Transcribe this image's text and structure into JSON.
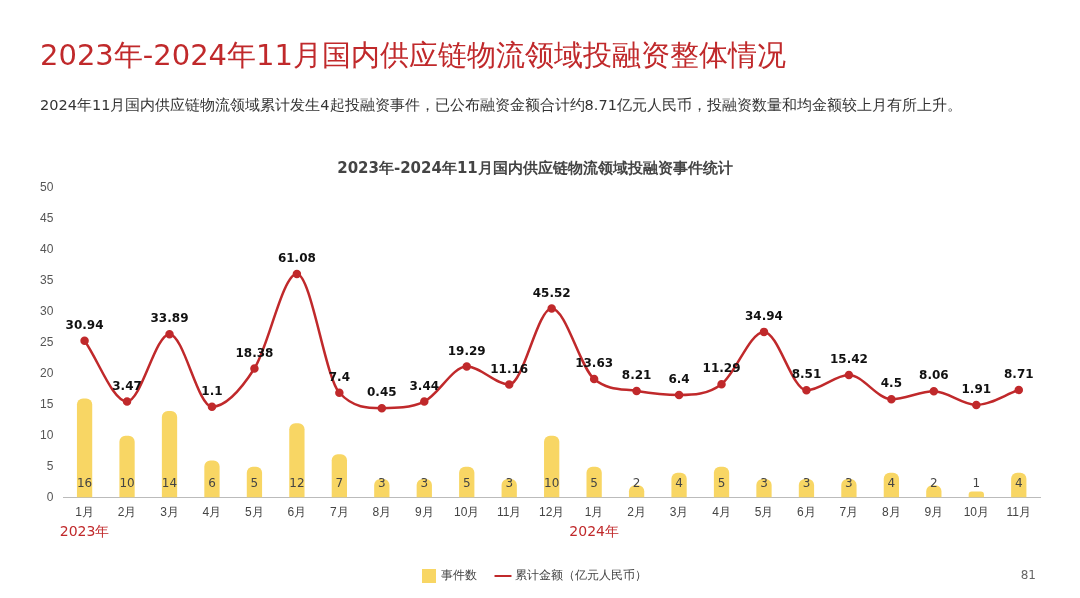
{
  "chart_data": {
    "type": "bar",
    "title": "2023年-2024年11月国内供应链物流领域投融资整体情况",
    "subtitle": "2024年11月国内供应链物流领域累计发生4起投融资事件，已公布融资金额合计约8.71亿元人民币，投融资数量和均金额较上月有所上升。",
    "annotations": [
      "2023年-2024年11月国内供应链物流领域投融资事件统计",
      "2023年",
      "2024年",
      "81"
    ],
    "categories": [
      "1月",
      "2月",
      "3月",
      "4月",
      "5月",
      "6月",
      "7月",
      "8月",
      "9月",
      "10月",
      "11月",
      "12月",
      "1月",
      "2月",
      "3月",
      "4月",
      "5月",
      "6月",
      "7月",
      "8月",
      "9月",
      "10月",
      "11月"
    ],
    "series": [
      {
        "name": "事件数",
        "color": "#f8d664",
        "values": [
          16,
          10,
          14,
          6,
          5,
          12,
          7,
          3,
          3,
          5,
          3,
          10,
          5,
          2,
          4,
          5,
          3,
          3,
          3,
          4,
          2,
          1,
          4
        ]
      },
      {
        "name": "累计金额（亿元人民币）",
        "type": "line",
        "axis": "y2",
        "color": "#c0292b",
        "values": [
          30.94,
          3.47,
          33.89,
          1.1,
          18.38,
          61.08,
          7.4,
          0.45,
          3.44,
          19.29,
          11.16,
          45.52,
          13.63,
          8.21,
          6.4,
          11.29,
          34.94,
          8.51,
          15.42,
          4.5,
          8.06,
          1.91,
          8.71
        ]
      }
    ],
    "ylim": [
      0,
      50
    ],
    "yticks": [
      0,
      5,
      10,
      15,
      20,
      25,
      30,
      35,
      40,
      45,
      50
    ],
    "grid": false,
    "legend": "bottom",
    "marker": "circle",
    "line_style": "solid",
    "data_labels": true
  }
}
